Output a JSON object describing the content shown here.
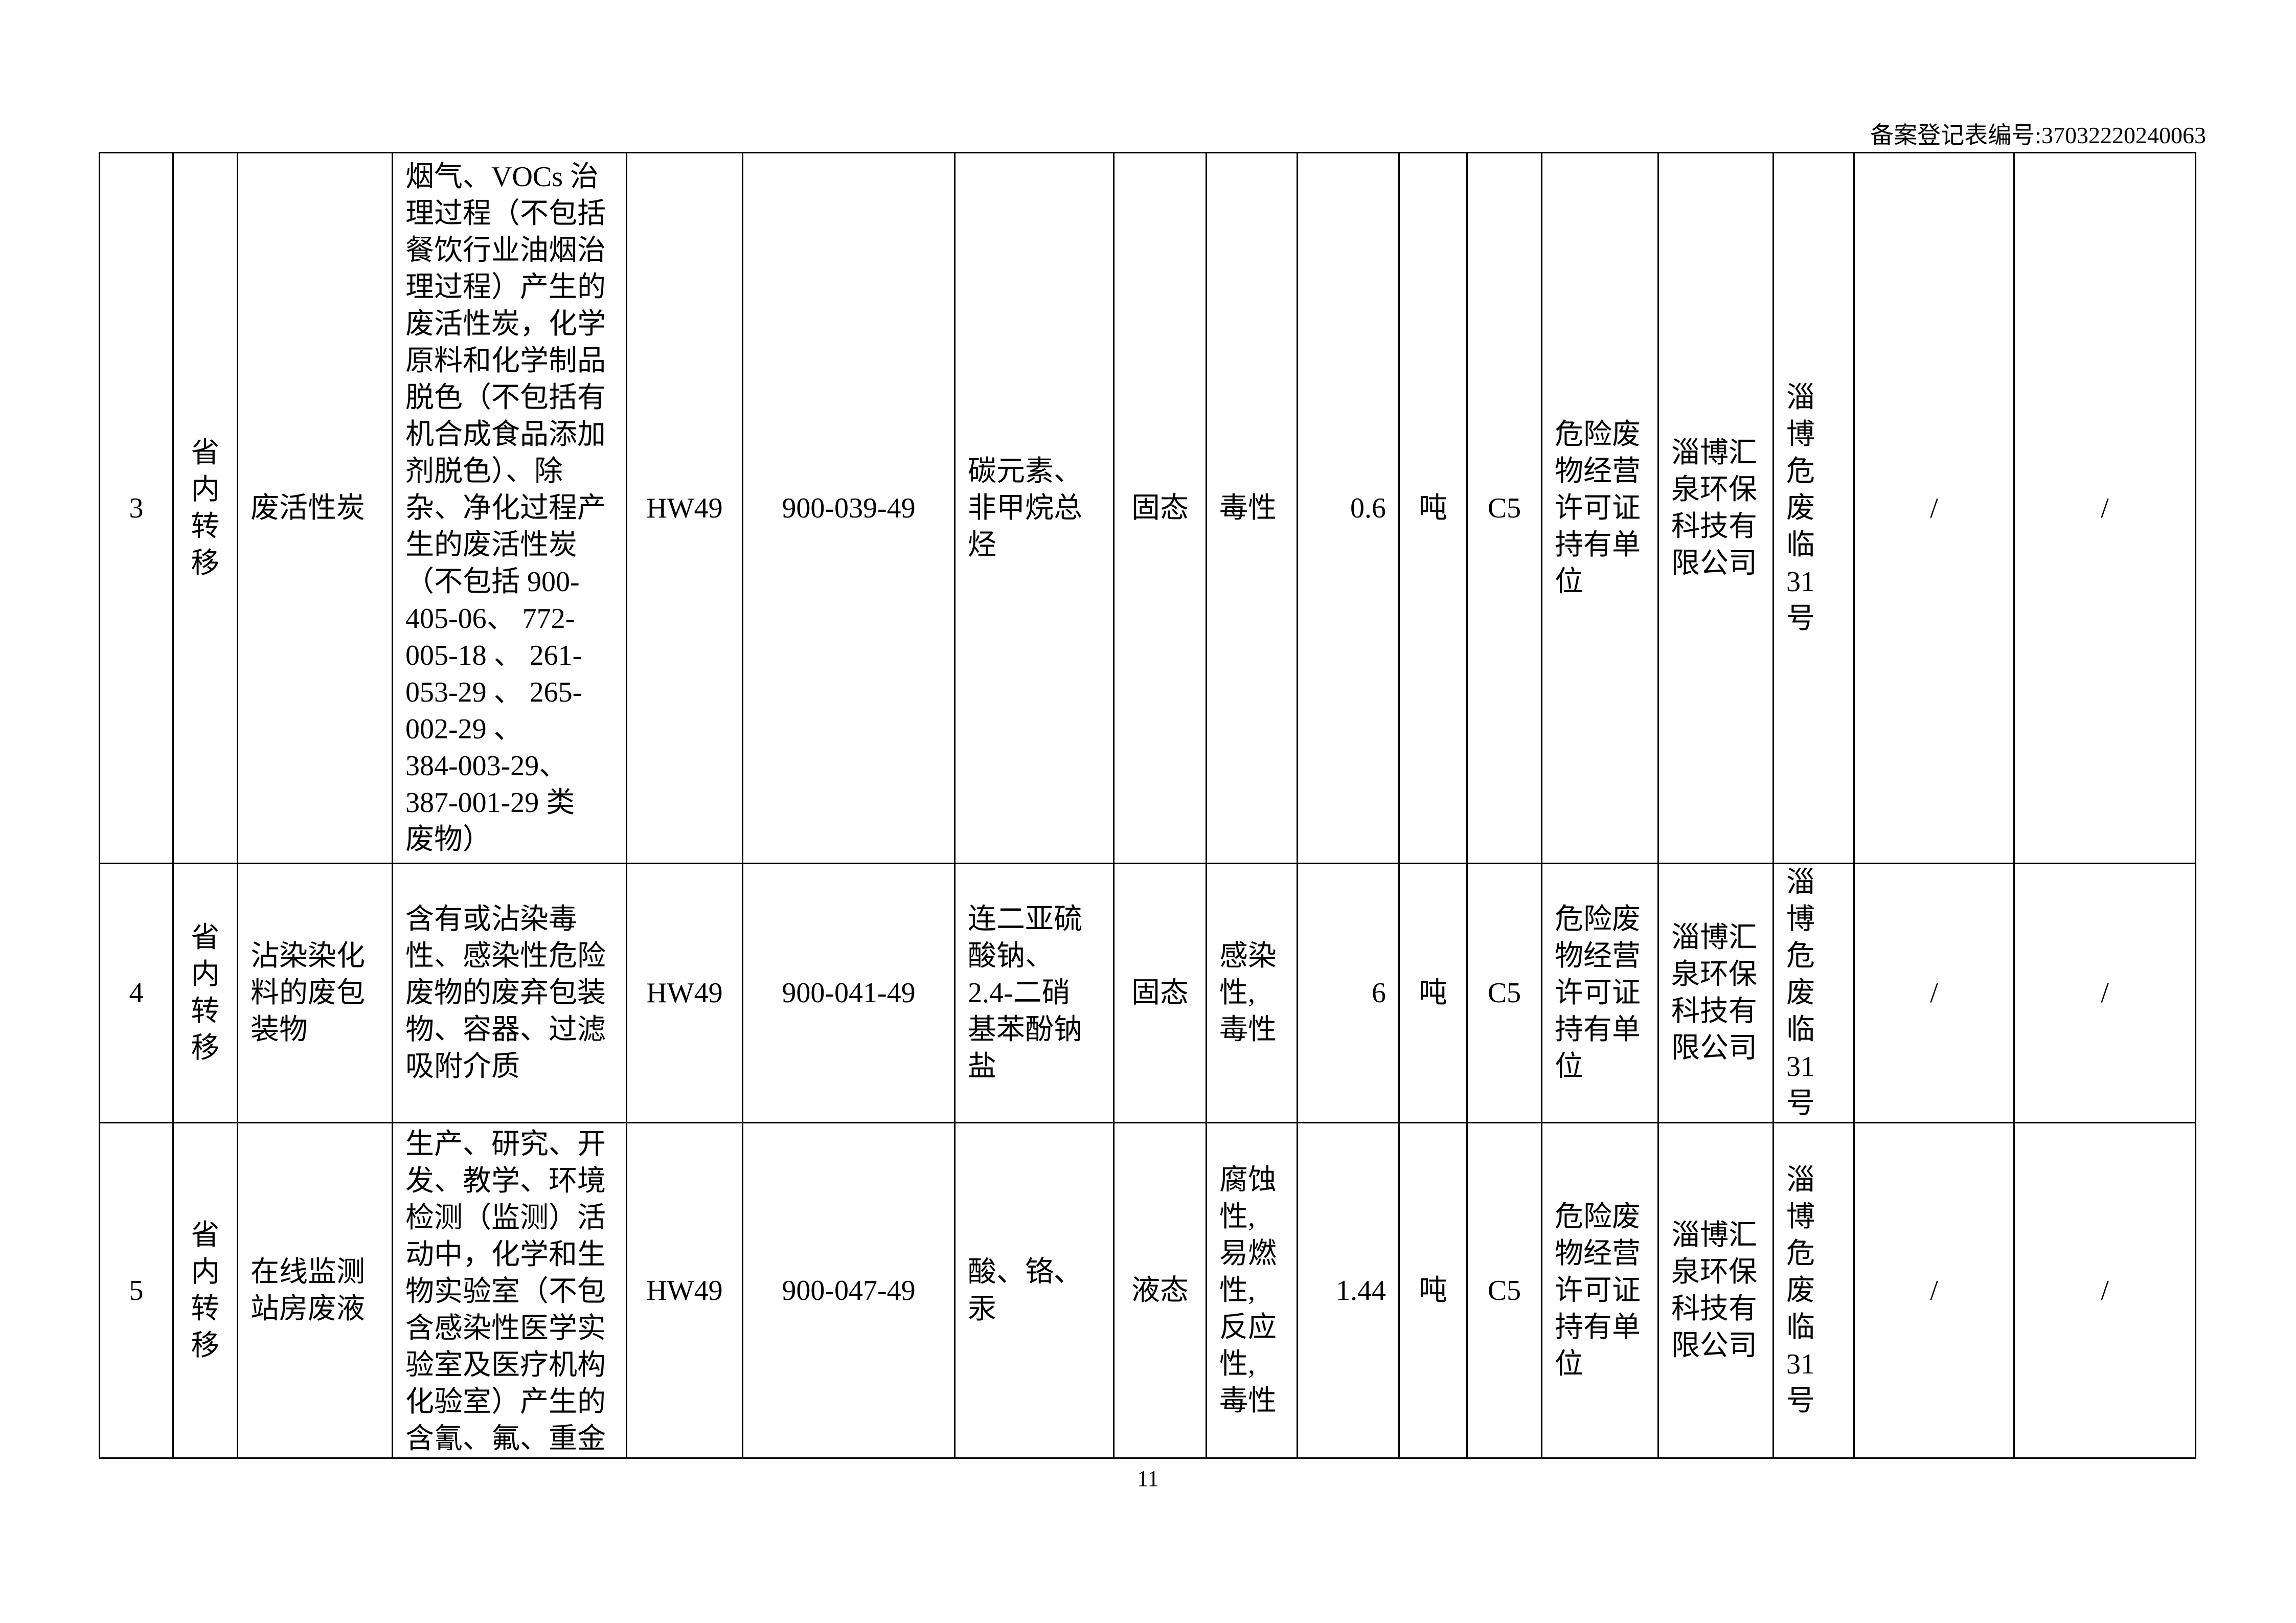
{
  "header": {
    "record_number": "备案登记表编号:37032220240063"
  },
  "page_number": "11",
  "rows": [
    {
      "index": "3",
      "transfer_type": "省\n内\n转\n移",
      "waste_name": "废活性炭",
      "description": "烟气、VOCs 治\n理过程（不包括\n餐饮行业油烟治\n理过程）产生的\n废活性炭，化学\n原料和化学制品\n脱色（不包括有\n机合成食品添加\n剂脱色）、除\n杂、净化过程产\n生的废活性炭\n（不包括 900-\n405-06、 772-\n005-18 、 261-\n053-29 、 265-\n002-29 、\n384-003-29、\n387-001-29 类\n废物）",
      "category": "HW49",
      "code": "900-039-49",
      "hazardous_components": "碳元素、\n非甲烷总\n烃",
      "form": "固态",
      "hazard": "毒性",
      "quantity": "0.6",
      "unit": "吨",
      "grade": "C5",
      "receiver_type": "危险废\n物经营\n许可证\n持有单\n位",
      "receiver": "淄博汇\n泉环保\n科技有\n限公司",
      "license": "淄\n博\n危\n废\n临\n31\n号",
      "col16": "/",
      "col17": "/"
    },
    {
      "index": "4",
      "transfer_type": "省\n内\n转\n移",
      "waste_name": "沾染染化\n料的废包\n装物",
      "description": "含有或沾染毒\n性、感染性危险\n废物的废弃包装\n物、容器、过滤\n吸附介质",
      "category": "HW49",
      "code": "900-041-49",
      "hazardous_components": "连二亚硫\n酸钠、\n2.4-二硝\n基苯酚钠\n盐",
      "form": "固态",
      "hazard": "感染\n性,\n毒性",
      "quantity": "6",
      "unit": "吨",
      "grade": "C5",
      "receiver_type": "危险废\n物经营\n许可证\n持有单\n位",
      "receiver": "淄博汇\n泉环保\n科技有\n限公司",
      "license": "淄\n博\n危\n废\n临\n31\n号",
      "col16": "/",
      "col17": "/"
    },
    {
      "index": "5",
      "transfer_type": "省\n内\n转\n移",
      "waste_name": "在线监测\n站房废液",
      "description": "生产、研究、开\n发、教学、环境\n检测（监测）活\n动中，化学和生\n物实验室（不包\n含感染性医学实\n验室及医疗机构\n化验室）产生的\n含氰、氟、重金",
      "category": "HW49",
      "code": "900-047-49",
      "hazardous_components": "酸、铬、\n汞",
      "form": "液态",
      "hazard": "腐蚀\n性,\n易燃\n性,\n反应\n性,\n毒性",
      "quantity": "1.44",
      "unit": "吨",
      "grade": "C5",
      "receiver_type": "危险废\n物经营\n许可证\n持有单\n位",
      "receiver": "淄博汇\n泉环保\n科技有\n限公司",
      "license": "淄\n博\n危\n废\n临\n31\n号",
      "col16": "/",
      "col17": "/"
    }
  ]
}
